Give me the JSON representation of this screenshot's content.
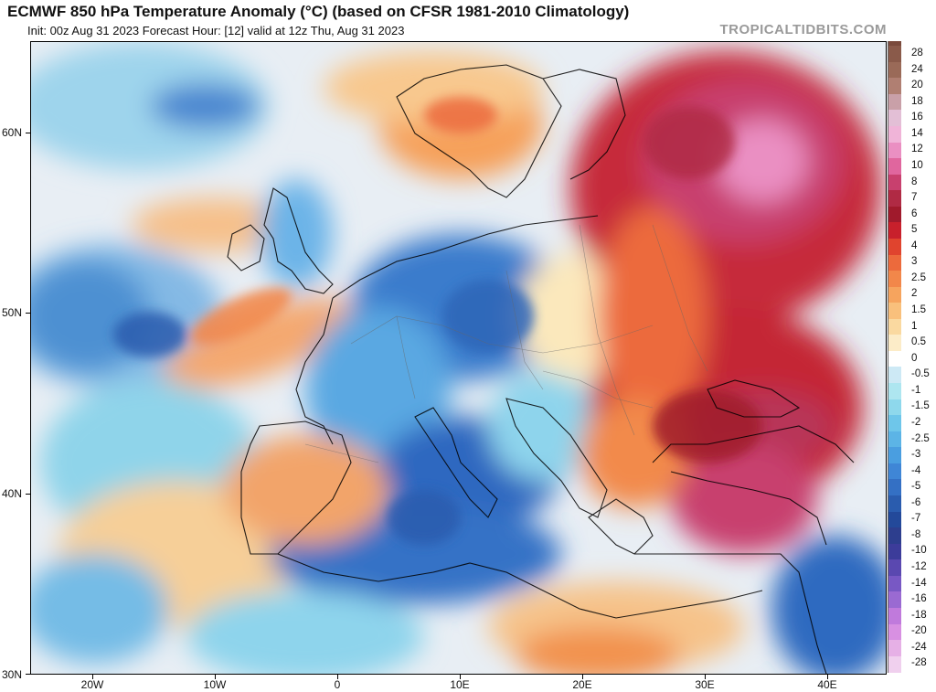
{
  "header": {
    "title": "ECMWF 850 hPa Temperature Anomaly (°C) (based on CFSR 1981-2010 Climatology)",
    "subtitle": "Init: 00z Aug 31 2023   Forecast Hour: [12]   valid at 12z Thu, Aug 31 2023",
    "brand": "TROPICALTIDBITS.COM"
  },
  "axes": {
    "lat_labels": [
      "60N",
      "50N",
      "40N",
      "30N"
    ],
    "lon_labels": [
      "20W",
      "10W",
      "0",
      "10E",
      "20E",
      "30E",
      "40E"
    ]
  },
  "legend": {
    "labels": [
      "28",
      "24",
      "20",
      "18",
      "16",
      "14",
      "12",
      "10",
      "8",
      "7",
      "6",
      "5",
      "4",
      "3",
      "2.5",
      "2",
      "1.5",
      "1",
      "0.5",
      "0",
      "-0.5",
      "-1",
      "-1.5",
      "-2",
      "-2.5",
      "-3",
      "-4",
      "-5",
      "-6",
      "-7",
      "-8",
      "-10",
      "-12",
      "-14",
      "-16",
      "-18",
      "-20",
      "-24",
      "-28"
    ],
    "colors": [
      "#8a5a4a",
      "#9a6a58",
      "#b07f72",
      "#c9a0a8",
      "#e3bfd6",
      "#f0b4d8",
      "#ea8fc2",
      "#e0669e",
      "#c8406e",
      "#b02a44",
      "#a01a2c",
      "#c8202c",
      "#e0442e",
      "#ec6a3c",
      "#f2874a",
      "#f6a45e",
      "#f9c07c",
      "#fad9a0",
      "#fcecc8",
      "#ffffff",
      "#cde9f5",
      "#aee6f0",
      "#8ed8ec",
      "#6ec6ea",
      "#5cb4e6",
      "#4a9ee0",
      "#3f86d6",
      "#3470c4",
      "#2a5cae",
      "#23499a",
      "#2d3e8e",
      "#3c3c9a",
      "#5a48b0",
      "#7858c4",
      "#9a6ad2",
      "#c07adc",
      "#d890e2",
      "#e6b0e6",
      "#f0d0ee"
    ]
  }
}
